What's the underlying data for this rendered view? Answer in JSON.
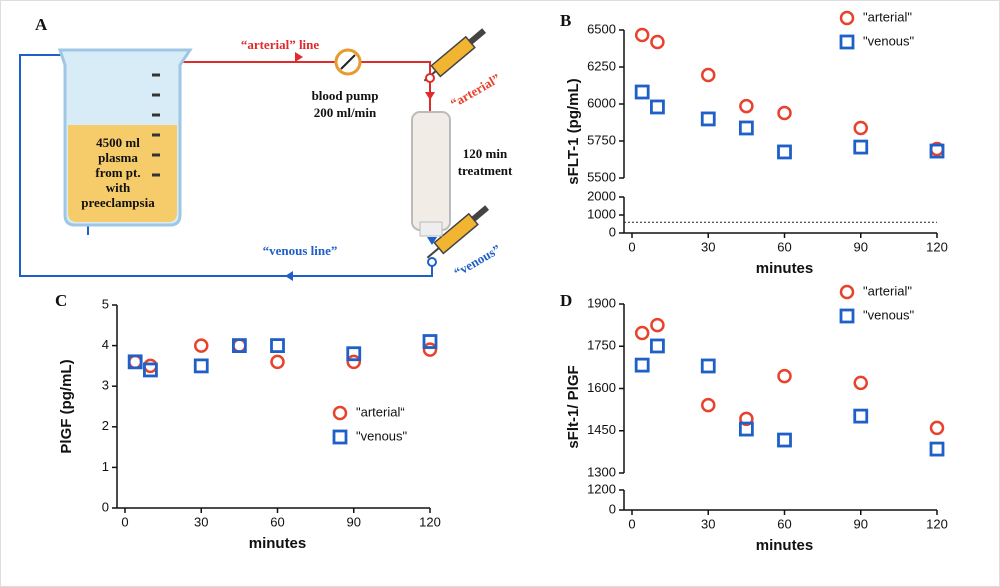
{
  "diagram": {
    "panel_label": "A",
    "arterial_line": "“arterial” line",
    "pump": [
      "blood pump",
      "200 ml/min"
    ],
    "arterial_port": "“arterial”",
    "plasma": [
      "4500 ml",
      "plasma",
      "from pt.",
      "with",
      "preeclampsia"
    ],
    "treatment": [
      "120 min",
      "treatment"
    ],
    "venous_port": "“venous”",
    "venous_line": "“venous line”"
  },
  "chart_data": [
    {
      "type": "scatter",
      "panel_label": "B",
      "x_label": "minutes",
      "y_label": "sFLT-1 (pg/mL)",
      "xlim": [
        0,
        120
      ],
      "xticks": [
        0,
        30,
        60,
        90,
        120
      ],
      "ylim": [
        5500,
        6500
      ],
      "yticks": [
        5500,
        5750,
        6000,
        6250,
        6500
      ],
      "ylim_break": [
        0,
        2000
      ],
      "yticks_break": [
        0,
        1000,
        2000
      ],
      "reference_line": 600,
      "legend": "upper right",
      "series": [
        {
          "name": "\"arterial\"",
          "color": "#e8412c",
          "marker": "circle",
          "x": [
            4,
            10,
            30,
            45,
            60,
            90,
            120
          ],
          "values": [
            6466,
            6419,
            6196,
            5986,
            5939,
            5838,
            5696
          ]
        },
        {
          "name": "\"venous\"",
          "color": "#1f5fc8",
          "marker": "square",
          "x": [
            4,
            10,
            30,
            45,
            60,
            90,
            120
          ],
          "values": [
            6081,
            5980,
            5899,
            5838,
            5676,
            5709,
            5682
          ]
        }
      ]
    },
    {
      "type": "scatter",
      "panel_label": "C",
      "x_label": "minutes",
      "y_label": "PlGF (pg/mL)",
      "xlim": [
        0,
        120
      ],
      "xticks": [
        0,
        30,
        60,
        90,
        120
      ],
      "ylim": [
        0,
        5
      ],
      "yticks": [
        0,
        1,
        2,
        3,
        4,
        5
      ],
      "legend": "lower right",
      "series": [
        {
          "name": "\"arterial“",
          "color": "#e8412c",
          "marker": "circle",
          "x": [
            4,
            10,
            30,
            45,
            60,
            90,
            120
          ],
          "values": [
            3.6,
            3.5,
            4.0,
            4.0,
            3.6,
            3.6,
            3.9
          ]
        },
        {
          "name": "\"venous\"",
          "color": "#1f5fc8",
          "marker": "square",
          "x": [
            4,
            10,
            30,
            45,
            60,
            90,
            120
          ],
          "values": [
            3.6,
            3.4,
            3.5,
            4.0,
            4.0,
            3.8,
            4.1
          ]
        }
      ]
    },
    {
      "type": "scatter",
      "panel_label": "D",
      "x_label": "minutes",
      "y_label": "sFlt-1/ PlGF",
      "xlim": [
        0,
        120
      ],
      "xticks": [
        0,
        30,
        60,
        90,
        120
      ],
      "ylim": [
        1300,
        1900
      ],
      "yticks": [
        1300,
        1450,
        1600,
        1750,
        1900
      ],
      "ylim_break": [
        0,
        1200
      ],
      "yticks_break": [
        0,
        1200
      ],
      "legend": "upper right",
      "series": [
        {
          "name": "\"arterial\"",
          "color": "#e8412c",
          "marker": "circle",
          "x": [
            4,
            10,
            30,
            45,
            60,
            90,
            120
          ],
          "values": [
            1797,
            1825,
            1541,
            1492,
            1644,
            1620,
            1460
          ]
        },
        {
          "name": "\"venous\"",
          "color": "#1f5fc8",
          "marker": "square",
          "x": [
            4,
            10,
            30,
            45,
            60,
            90,
            120
          ],
          "values": [
            1683,
            1751,
            1680,
            1456,
            1417,
            1502,
            1385
          ]
        }
      ]
    }
  ]
}
